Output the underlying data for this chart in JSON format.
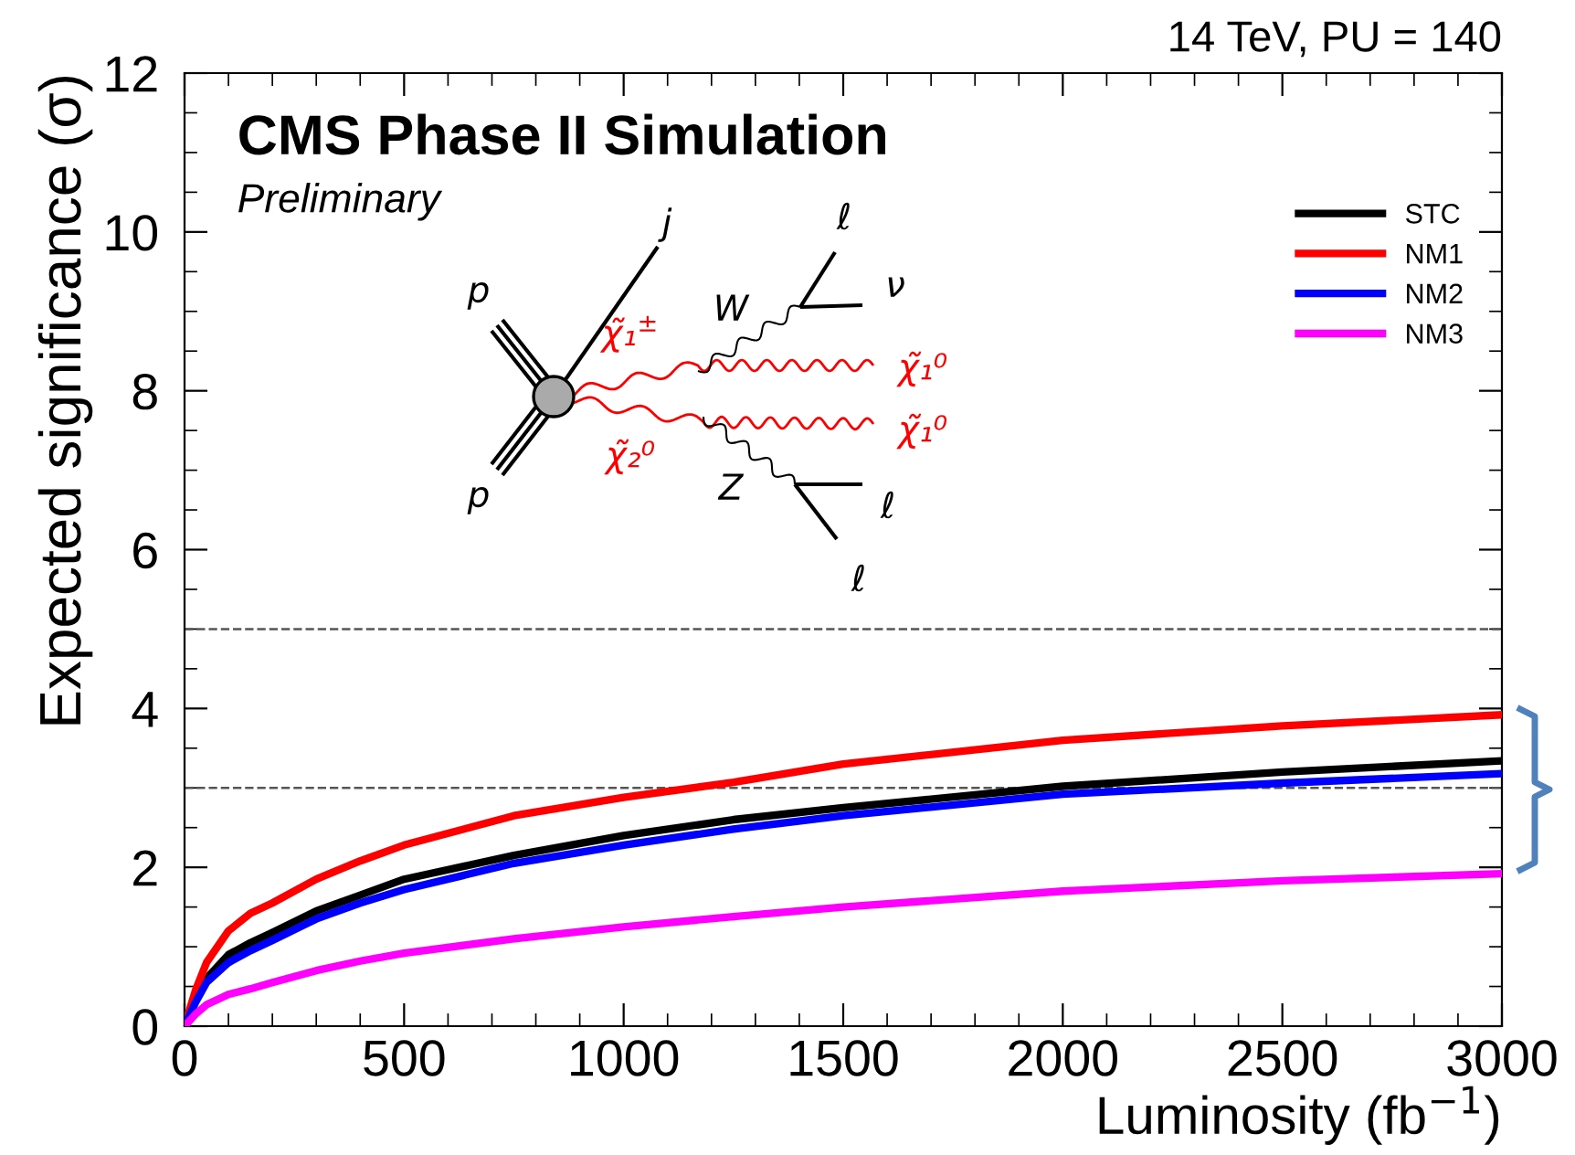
{
  "chart_data": {
    "type": "line",
    "title": "CMS Phase II Simulation",
    "xlabel": "Luminosity (fb$^{−1}$)",
    "ylabel": "Expected significance (σ)",
    "annotations": [
      "14 TeV, PU = 140",
      "Preliminary",
      "p",
      "p",
      "j",
      "W",
      "ν",
      "ℓ",
      "Z",
      "ℓ",
      "ℓ",
      "χ̃₁$^{±}$",
      "χ̃₂⁰",
      "χ̃₁⁰",
      "χ̃₁⁰"
    ],
    "x": [
      0,
      25,
      50,
      100,
      150,
      200,
      300,
      400,
      500,
      750,
      1000,
      1250,
      1500,
      2000,
      2500,
      3000
    ],
    "series": [
      {
        "name": "STC",
        "color": "#000000",
        "values": [
          0,
          0.35,
          0.6,
          0.9,
          1.05,
          1.18,
          1.45,
          1.65,
          1.85,
          2.15,
          2.4,
          2.6,
          2.75,
          3.02,
          3.2,
          3.34
        ]
      },
      {
        "name": "NM1",
        "color": "#ff0000",
        "values": [
          0,
          0.45,
          0.8,
          1.2,
          1.42,
          1.55,
          1.85,
          2.08,
          2.28,
          2.65,
          2.88,
          3.07,
          3.3,
          3.6,
          3.78,
          3.92
        ]
      },
      {
        "name": "NM2",
        "color": "#0000ff",
        "values": [
          0,
          0.3,
          0.55,
          0.8,
          0.95,
          1.08,
          1.35,
          1.55,
          1.72,
          2.05,
          2.28,
          2.48,
          2.65,
          2.92,
          3.06,
          3.18
        ]
      },
      {
        "name": "NM3",
        "color": "#ff00ff",
        "values": [
          0,
          0.15,
          0.27,
          0.4,
          0.47,
          0.55,
          0.7,
          0.82,
          0.92,
          1.1,
          1.25,
          1.38,
          1.5,
          1.7,
          1.83,
          1.92
        ]
      }
    ],
    "xlim": [
      0,
      3000
    ],
    "ylim": [
      0,
      12
    ],
    "xticks": [
      0,
      500,
      1000,
      1500,
      2000,
      2500,
      3000
    ],
    "yticks": [
      0,
      2,
      4,
      6,
      8,
      10,
      12
    ],
    "ref_lines": [
      {
        "axis": "y",
        "value": 5,
        "color": "#555555",
        "line_style": "dashed"
      },
      {
        "axis": "y",
        "value": 3,
        "color": "#555555",
        "line_style": "dashed"
      }
    ],
    "grid": false,
    "legend": "top right",
    "marker": "none",
    "line_style": "solid"
  }
}
